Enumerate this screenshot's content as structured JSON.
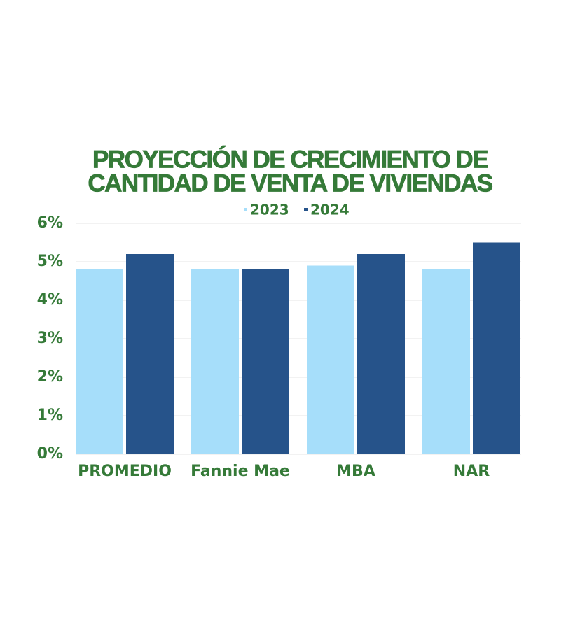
{
  "chart_data": {
    "type": "bar",
    "title": [
      "PROYECCIÓN DE CRECIMIENTO DE",
      "CANTIDAD DE VENTA DE VIVIENDAS"
    ],
    "categories": [
      "PROMEDIO",
      "Fannie Mae",
      "MBA",
      "NAR"
    ],
    "series": [
      {
        "name": "2023",
        "color": "#a6defa",
        "values": [
          4.8,
          4.8,
          4.9,
          4.8
        ]
      },
      {
        "name": "2024",
        "color": "#26538a",
        "values": [
          5.2,
          4.8,
          5.2,
          5.5
        ]
      }
    ],
    "ylim": [
      0,
      6
    ],
    "yticks": [
      {
        "value": 0,
        "label": "0%"
      },
      {
        "value": 1,
        "label": "1%"
      },
      {
        "value": 2,
        "label": "2%"
      },
      {
        "value": 3,
        "label": "3%"
      },
      {
        "value": 4,
        "label": "4%"
      },
      {
        "value": 5,
        "label": "5%"
      },
      {
        "value": 6,
        "label": "6%"
      }
    ],
    "grid": true,
    "legend": "top"
  }
}
